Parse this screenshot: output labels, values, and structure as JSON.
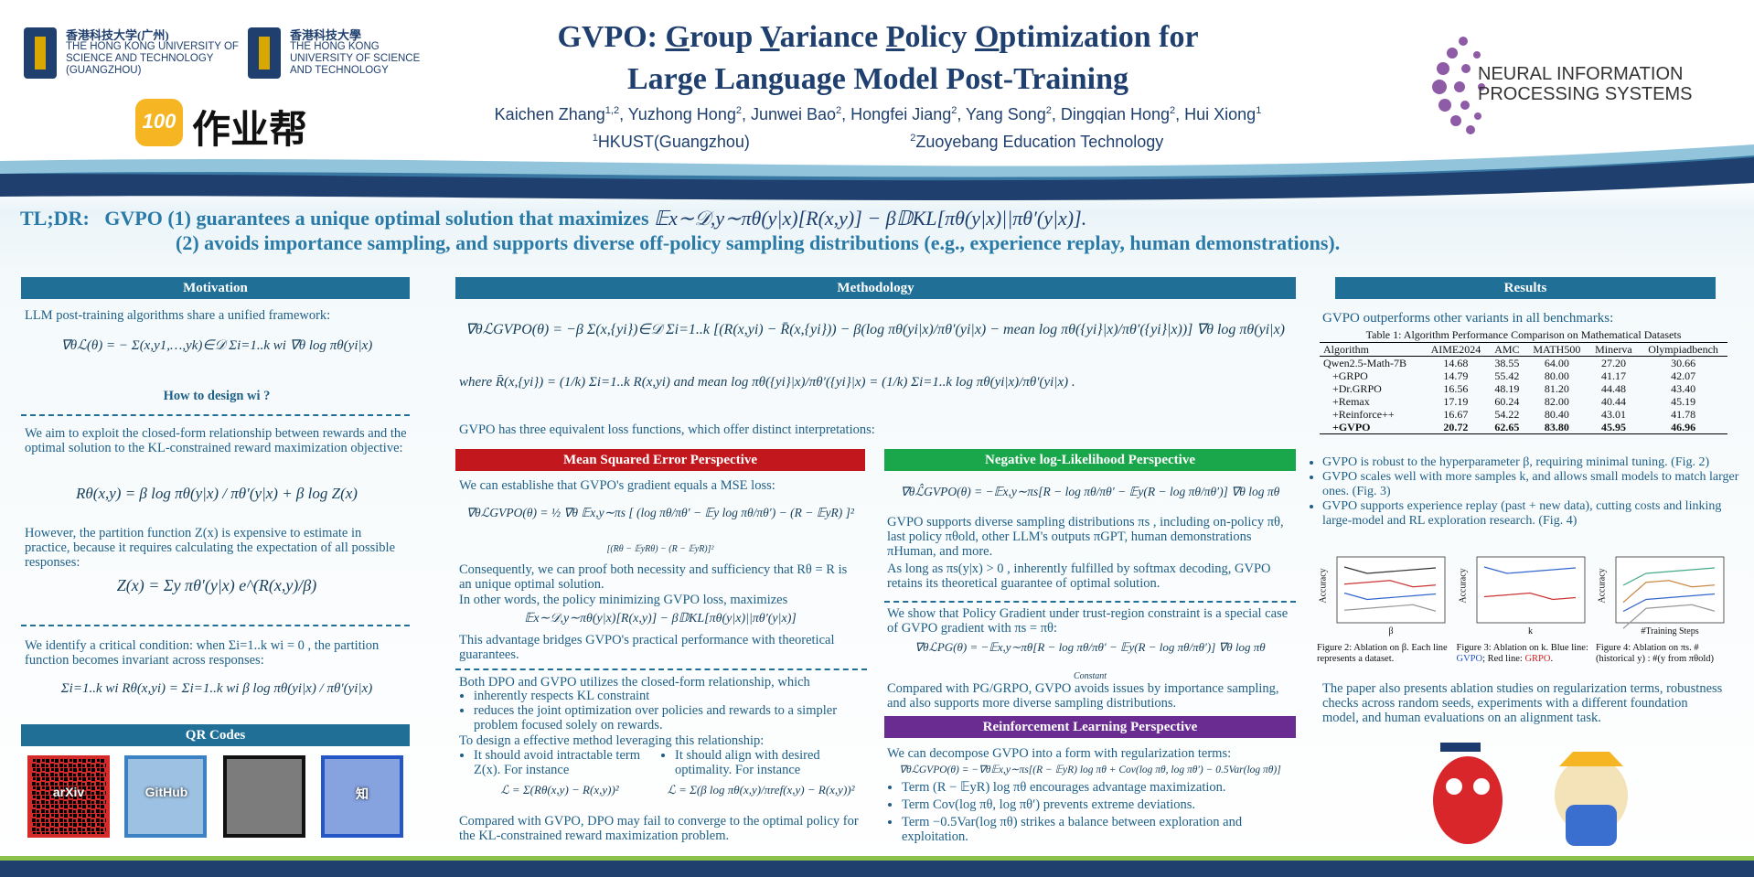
{
  "header": {
    "hkust_gz_cn": "香港科技大学(广州)",
    "hkust_gz_en": "THE HONG KONG UNIVERSITY OF SCIENCE AND TECHNOLOGY (GUANGZHOU)",
    "hkust_cn": "香港科技大學",
    "hkust_en": "THE HONG KONG UNIVERSITY OF SCIENCE AND TECHNOLOGY",
    "zyb_icon": "100",
    "zyb_name": "作业帮",
    "neurips": "NEURAL INFORMATION PROCESSING SYSTEMS",
    "title_line1": [
      "GVPO: ",
      "G",
      "roup ",
      "V",
      "ariance ",
      "P",
      "olicy ",
      "O",
      "ptimization for"
    ],
    "title_line2": "Large Language Model Post-Training",
    "authors": [
      "Kaichen Zhang",
      "1,2",
      ", Yuzhong Hong",
      "2",
      ", Junwei Bao",
      "2",
      ", Hongfei Jiang",
      "2",
      ", Yang Song",
      "2",
      ", Dingqian Hong",
      "2",
      ", Hui Xiong",
      "1"
    ],
    "affiliations": [
      [
        "1",
        "HKUST(Guangzhou)"
      ],
      [
        "2",
        "Zuoyebang Education Technology"
      ]
    ]
  },
  "tldr": {
    "label": "TL;DR:",
    "point1": "GVPO (1) guarantees a unique optimal solution that maximizes",
    "formula1": "𝔼x∼𝒟,y∼πθ(y|x)[R(x,y)] − β𝔻KL[πθ(y|x)||πθ′(y|x)].",
    "point2": "(2) avoids importance sampling, and supports diverse off-policy sampling distributions (e.g., experience replay, human demonstrations)."
  },
  "motivation": {
    "heading": "Motivation",
    "intro": "LLM post-training algorithms share a unified framework:",
    "formula1": "∇θℒ(θ) = − Σ(x,y1,…,yk)∈𝒟 Σi=1..k wi ∇θ log πθ(yi|x)",
    "question": "How to design wi ?",
    "aim": "We aim to exploit the closed-form relationship between rewards and the optimal solution to the KL-constrained reward maximization objective:",
    "formula2": "Rθ(x,y) = β log πθ(y|x) / πθ′(y|x) + β log Z(x)",
    "however": "However, the partition function Z(x) is expensive to estimate in practice, because it requires calculating the expectation of all possible responses:",
    "formula3": "Z(x) = Σy πθ′(y|x) e^(R(x,y)/β)",
    "condition": "We identify a critical condition: when Σi=1..k wi = 0 , the partition function becomes invariant across responses:",
    "formula4": "Σi=1..k wi Rθ(x,yi) = Σi=1..k wi β log πθ(yi|x) / πθ′(yi|x)"
  },
  "qr": {
    "heading": "QR Codes",
    "icons": [
      "arXiv",
      "GitHub",
      "",
      "知"
    ]
  },
  "methodology": {
    "heading": "Methodology",
    "formula1": "∇θℒGVPO(θ) = −β Σ(x,{yi})∈𝒟 Σi=1..k [(R(x,yi) − R̄(x,{yi})) − β(log πθ(yi|x)/πθ′(yi|x) − mean log πθ({yi}|x)/πθ′({yi}|x))] ∇θ log πθ(yi|x)",
    "formula2": "where R̄(x,{yi}) = (1/k) Σi=1..k R(x,yi) and mean log πθ({yi}|x)/πθ′({yi}|x) = (1/k) Σi=1..k log πθ(yi|x)/πθ′(yi|x) .",
    "intro": "GVPO has three equivalent loss functions, which offer distinct interpretations:"
  },
  "mse": {
    "heading": "Mean Squared Error Perspective",
    "p1": "We can establishe that GVPO's gradient equals a MSE loss:",
    "formula1": "∇θℒGVPO(θ) = ½ ∇θ 𝔼x,y∼πs [ (log πθ/πθ′ − 𝔼y log πθ/πθ′) − (R − 𝔼yR) ]²",
    "formula1_note": "[(Rθ − 𝔼yRθ) − (R − 𝔼yR)]²",
    "p2": "Consequently, we can proof both necessity and sufficiency that Rθ = R is an unique optimal solution.",
    "p3": "In other words, the policy minimizing GVPO loss, maximizes",
    "formula2": "𝔼x∼𝒟,y∼πθ(y|x)[R(x,y)] − β𝔻KL[πθ(y|x)||πθ′(y|x)]",
    "p4": "This advantage bridges GVPO's practical performance with theoretical guarantees.",
    "dpo_intro": "Both DPO and GVPO utilizes the closed-form relationship, which",
    "dpo_bullets": [
      "inherently respects KL constraint",
      "reduces the joint optimization over policies and rewards to a simpler problem focused solely on rewards."
    ],
    "design": "To design a effective method leveraging this relationship:",
    "design_bullets": [
      "It should avoid intractable term Z(x). For instance",
      "It should align with desired optimality. For instance"
    ],
    "design_formulas": [
      "ℒ = Σ(Rθ(x,y) − R(x,y))²",
      "ℒ = Σ(β log πθ(x,y)/πref(x,y) − R(x,y))²"
    ],
    "conclusion": "Compared with GVPO, DPO may fail to converge to the optimal policy for the KL-constrained reward maximization problem."
  },
  "nll": {
    "heading": "Negative log-Likelihood Perspective",
    "formula1": "∇θℒ̂GVPO(θ) = −𝔼x,y∼πs[R − log πθ/πθ′ − 𝔼y(R − log πθ/πθ′)] ∇θ log πθ",
    "p1": "GVPO supports diverse sampling distributions πs , including on-policy πθ, last policy πθold, other LLM's outputs πGPT, human demonstrations πHuman, and more.",
    "p2": "As long as πs(y|x) > 0 , inherently fulfilled by softmax decoding, GVPO retains its theoretical guarantee of  optimal solution.",
    "p3": "We show that Policy Gradient under trust-region constraint is a special case of GVPO gradient with πs = πθ:",
    "formula2": "∇θℒPG(θ) = −𝔼x,y∼πθ[R − log πθ/πθ′ − 𝔼y(R − log πθ/πθ′)] ∇θ log πθ",
    "constant": "Constant",
    "p4": "Compared with PG/GRPO, GVPO avoids issues by importance sampling, and also supports more diverse sampling distributions."
  },
  "rl": {
    "heading": "Reinforcement Learning Perspective",
    "p1": "We can decompose GVPO into a form with regularization terms:",
    "formula1": "∇θℒGVPO(θ) = −∇θ𝔼x,y∼πs[(R − 𝔼yR) log πθ + Cov(log πθ, log πθ′) − 0.5Var(log πθ)]",
    "bullets": [
      "Term (R − 𝔼yR) log πθ encourages advantage maximization.",
      "Term Cov(log πθ, log πθ′) prevents extreme deviations.",
      "Term −0.5Var(log πθ)  strikes a balance between exploration and exploitation."
    ]
  },
  "results": {
    "heading": "Results",
    "intro": "GVPO outperforms other variants in all benchmarks:",
    "table": {
      "caption": "Table 1: Algorithm Performance Comparison on Mathematical Datasets",
      "columns": [
        "Algorithm",
        "AIME2024",
        "AMC",
        "MATH500",
        "Minerva",
        "Olympiadbench"
      ],
      "rows": [
        [
          "Qwen2.5-Math-7B",
          "14.68",
          "38.55",
          "64.00",
          "27.20",
          "30.66"
        ],
        [
          "+GRPO",
          "14.79",
          "55.42",
          "80.00",
          "41.17",
          "42.07"
        ],
        [
          "+Dr.GRPO",
          "16.56",
          "48.19",
          "81.20",
          "44.48",
          "43.40"
        ],
        [
          "+Remax",
          "17.19",
          "60.24",
          "82.00",
          "40.44",
          "45.19"
        ],
        [
          "+Reinforce++",
          "16.67",
          "54.22",
          "80.40",
          "43.01",
          "41.78"
        ],
        [
          "+GVPO",
          "20.72",
          "62.65",
          "83.80",
          "45.95",
          "46.96"
        ]
      ]
    },
    "bullets": [
      "GVPO is robust to the hyperparameter β, requiring minimal tuning. (Fig. 2)",
      "GVPO scales well with more samples k, and allows small models to match larger ones. (Fig. 3)",
      "GVPO supports experience replay (past + new data), cutting costs and linking large-model and RL exploration research. (Fig. 4)"
    ],
    "figures": [
      {
        "ylabel": "Accuracy",
        "xlabel": "β",
        "caption": [
          "Figure 2: Ablation on β. Each line represents a dataset."
        ]
      },
      {
        "ylabel": "Accuracy",
        "xlabel": "k",
        "caption": [
          "Figure 3: Ablation on k. Blue line: ",
          "GVPO",
          "; Red line: ",
          "GRPO",
          "."
        ]
      },
      {
        "ylabel": "Accuracy",
        "xlabel": "#Training Steps",
        "caption": [
          "Figure 4: Ablation on πs. #(historical y) : #(y from πθold)"
        ]
      }
    ],
    "summary": "The paper also presents ablation studies on regularization terms, robustness checks across random seeds, experiments with a different foundation model, and human evaluations on an alignment task."
  }
}
